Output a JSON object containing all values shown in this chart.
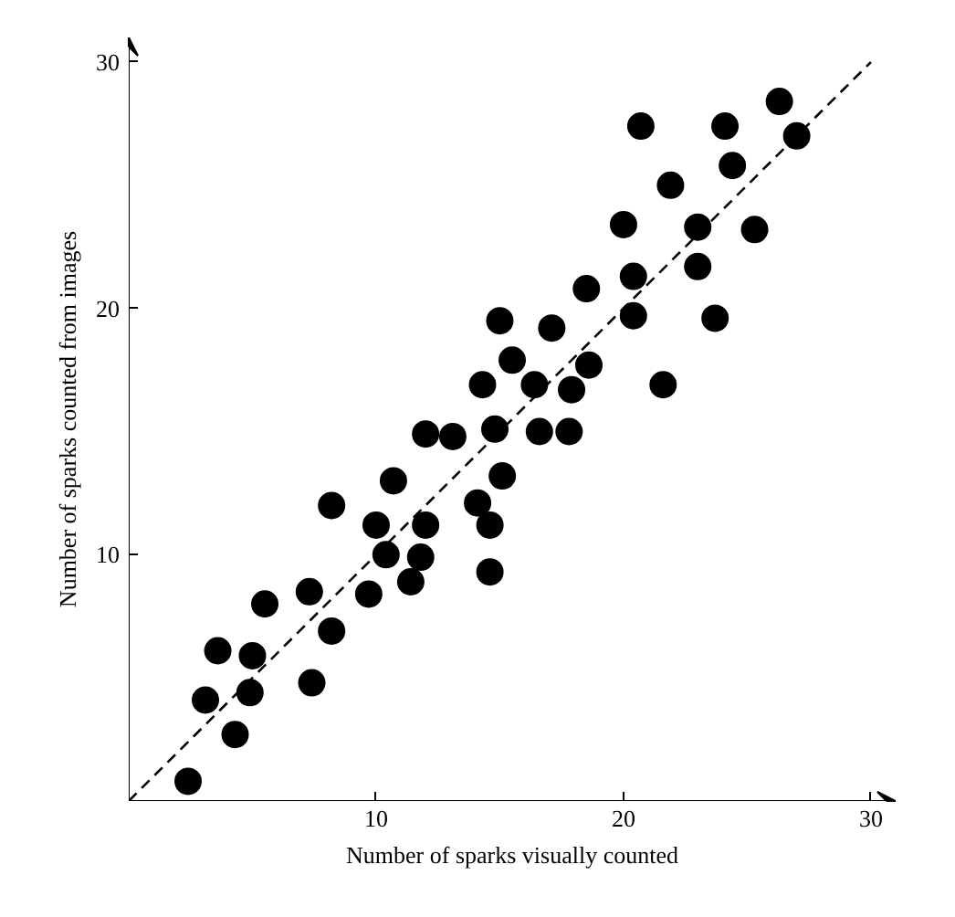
{
  "chart_data": {
    "type": "scatter",
    "xlabel": "Number of sparks visually counted",
    "ylabel": "Number of sparks counted from images",
    "xlim": [
      0,
      31
    ],
    "ylim": [
      0,
      31
    ],
    "xticks": [
      10,
      20,
      30
    ],
    "yticks": [
      10,
      20,
      30
    ],
    "grid": false,
    "marker": "circle",
    "series": [
      {
        "color": "#000000",
        "x": [
          2.4,
          3.1,
          3.6,
          4.3,
          4.9,
          5.0,
          5.5,
          7.4,
          7.3,
          8.2,
          8.2,
          9.7,
          10.0,
          10.4,
          10.7,
          11.4,
          11.8,
          12.0,
          12.0,
          13.1,
          14.1,
          14.6,
          14.6,
          15.1,
          14.8,
          16.6,
          17.8,
          14.3,
          15.5,
          15.0,
          16.4,
          17.1,
          17.9,
          18.6,
          18.5,
          20.4,
          20.4,
          20.0,
          20.7,
          21.6,
          21.9,
          23.0,
          23.0,
          23.7,
          24.1,
          24.4,
          25.3,
          26.3,
          27.0
        ],
        "values": [
          0.8,
          4.1,
          6.1,
          2.7,
          4.4,
          5.9,
          8.0,
          4.8,
          8.5,
          6.9,
          12.0,
          8.4,
          11.2,
          10.0,
          13.0,
          8.9,
          9.9,
          11.2,
          14.9,
          14.8,
          12.1,
          11.2,
          9.3,
          13.2,
          15.1,
          15.0,
          15.0,
          16.9,
          17.9,
          19.5,
          16.9,
          19.2,
          16.7,
          17.7,
          20.8,
          19.7,
          21.3,
          23.4,
          27.4,
          16.9,
          25.0,
          23.3,
          21.7,
          19.6,
          27.4,
          25.8,
          23.2,
          28.4,
          27.0
        ]
      },
      {
        "type": "line",
        "color": "#000000",
        "line_style": "dashed",
        "marker": "none",
        "x": [
          0,
          30
        ],
        "values": [
          0,
          30
        ]
      }
    ]
  }
}
